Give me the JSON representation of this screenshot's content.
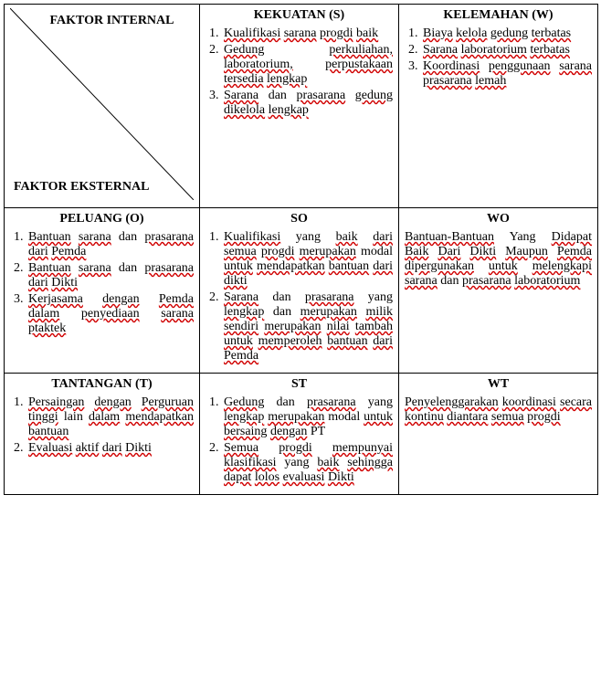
{
  "diag": {
    "top": "FAKTOR INTERNAL",
    "bottom": "FAKTOR EKSTERNAL"
  },
  "kekuatan": {
    "title": "KEKUATAN (S)",
    "items": [
      "Kualifikasi sarana progdi baik",
      "Gedung perkuliahan, laboratorium, perpustakaan tersedia lengkap",
      "Sarana dan prasarana gedung dikelola lengkap"
    ]
  },
  "kelemahan": {
    "title": "KELEMAHAN (W)",
    "items": [
      "Biaya kelola gedung terbatas",
      "Sarana laboratorium terbatas",
      "Koordinasi penggunaan sarana prasarana lemah"
    ]
  },
  "peluang": {
    "title": "PELUANG (O)",
    "items": [
      "Bantuan sarana dan prasarana dari Pemda",
      "Bantuan sarana dan prasarana dari Dikti",
      "Kerjasama dengan Pemda dalam penyediaan sarana ptaktek"
    ]
  },
  "so": {
    "title": "SO",
    "items": [
      "Kualifikasi yang baik dari semua progdi merupakan modal untuk mendapatkan bantuan dari dikti",
      "Sarana dan prasarana yang lengkap dan merupakan milik sendiri merupakan nilai tambah untuk memperoleh bantuan dari Pemda"
    ]
  },
  "wo": {
    "title": "WO",
    "text": "Bantuan-Bantuan Yang Didapat Baik Dari Dikti Maupun Pemda dipergunakan untuk melengkapi sarana dan prasarana laboratorium"
  },
  "tantangan": {
    "title": "TANTANGAN (T)",
    "items": [
      "Persaingan dengan Perguruan tinggi lain dalam mendapatkan bantuan",
      "Evaluasi aktif dari Dikti"
    ]
  },
  "st": {
    "title": "ST",
    "items": [
      "Gedung dan prasarana yang lengkap merupakan modal untuk bersaing dengan PT",
      "Semua progdi mempunyai klasifikasi yang baik sehingga dapat lolos evaluasi Dikti"
    ]
  },
  "wt": {
    "title": "WT",
    "text": "Penyelenggarakan koordinasi secara kontinu diantara semua progdi"
  },
  "red_words": [
    "Kualifikasi",
    "sarana",
    "progdi",
    "baik",
    "Gedung",
    "perkuliahan",
    "laboratorium",
    "perpustakaan",
    "tersedia",
    "lengkap",
    "Sarana",
    "prasarana",
    "gedung",
    "dikelola",
    "Biaya",
    "kelola",
    "terbatas",
    "Koordinasi",
    "penggunaan",
    "lemah",
    "Bantuan",
    "dari",
    "Pemda",
    "Dikti",
    "Kerjasama",
    "dengan",
    "dalam",
    "penyediaan",
    "ptaktek",
    "semua",
    "merupakan",
    "untuk",
    "mendapatkan",
    "bantuan",
    "dikti",
    "milik",
    "sendiri",
    "nilai",
    "tambah",
    "memperoleh",
    "Bantuan-Bantuan",
    "Didapat",
    "Baik",
    "Dari",
    "Maupun",
    "dipergunakan",
    "melengkapi",
    "Persaingan",
    "Perguruan",
    "tinggi",
    "Evaluasi",
    "aktif",
    "bersaing",
    "mempunyai",
    "klasifikasi",
    "sehingga",
    "dapat",
    "lolos",
    "evaluasi",
    "Penyelenggarakan",
    "koordinasi",
    "secara",
    "kontinu",
    "diantara"
  ],
  "colors": {
    "text": "#000000",
    "border": "#000000",
    "wavy": "#d00000",
    "background": "#ffffff"
  }
}
